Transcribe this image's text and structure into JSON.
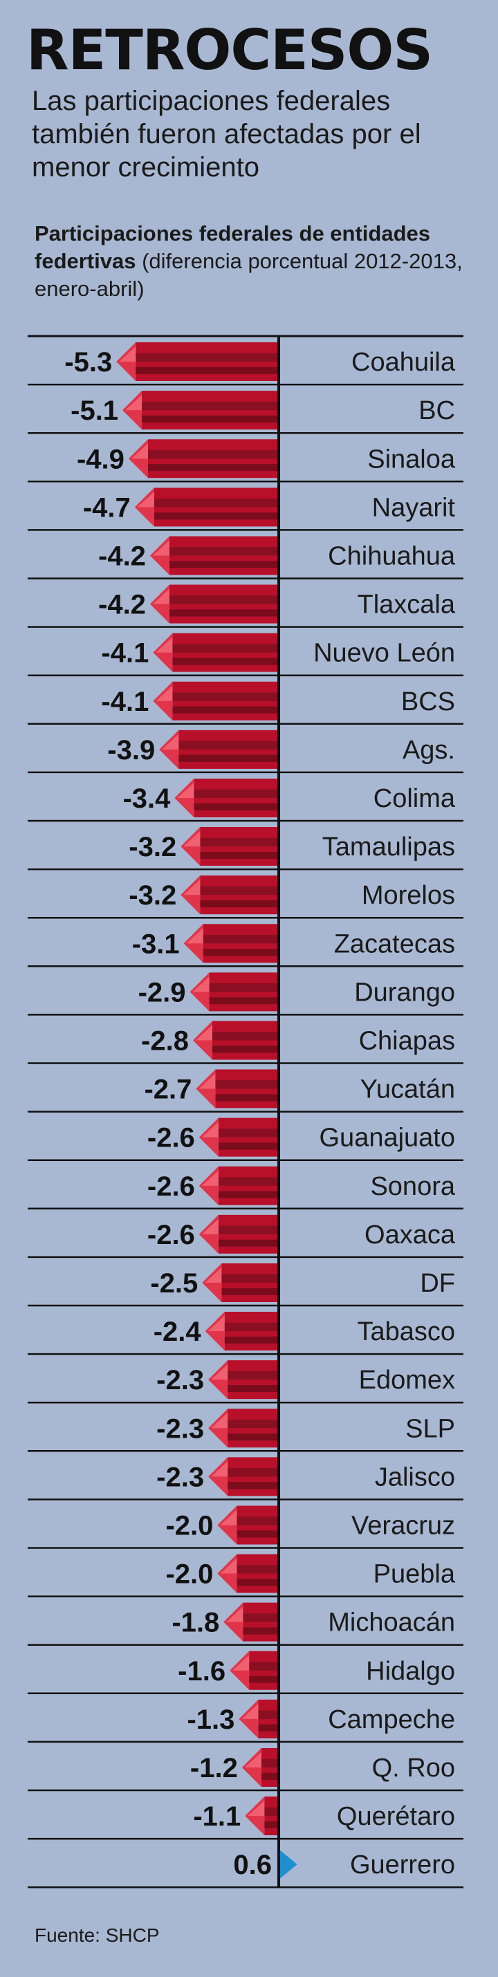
{
  "title": "RETROCESOS",
  "subtitle": "Las participaciones federales también fueron afectadas por el menor crecimiento",
  "chart_heading": {
    "bold": "Participaciones federales de entidades federtivas",
    "normal": "(diferencia porcentual 2012-2013, enero-abril)"
  },
  "source": "Fuente: SHCP",
  "colors": {
    "background": "#a9b8d2",
    "negative_bar": "#b8102a",
    "negative_tip": "#e0344a",
    "positive_tip": "#1f8fd0",
    "axis": "#111111"
  },
  "chart_data": {
    "type": "bar",
    "orientation": "horizontal",
    "title": "Participaciones federales de entidades federtivas (diferencia porcentual 2012-2013, enero-abril)",
    "xlabel": "",
    "ylabel": "",
    "xlim": [
      -5.3,
      0.6
    ],
    "grid": false,
    "categories": [
      "Coahuila",
      "BC",
      "Sinaloa",
      "Nayarit",
      "Chihuahua",
      "Tlaxcala",
      "Nuevo León",
      "BCS",
      "Ags.",
      "Colima",
      "Tamaulipas",
      "Morelos",
      "Zacatecas",
      "Durango",
      "Chiapas",
      "Yucatán",
      "Guanajuato",
      "Sonora",
      "Oaxaca",
      "DF",
      "Tabasco",
      "Edomex",
      "SLP",
      "Jalisco",
      "Veracruz",
      "Puebla",
      "Michoacán",
      "Hidalgo",
      "Campeche",
      "Q. Roo",
      "Querétaro",
      "Guerrero"
    ],
    "values": [
      -5.3,
      -5.1,
      -4.9,
      -4.7,
      -4.2,
      -4.2,
      -4.1,
      -4.1,
      -3.9,
      -3.4,
      -3.2,
      -3.2,
      -3.1,
      -2.9,
      -2.8,
      -2.7,
      -2.6,
      -2.6,
      -2.6,
      -2.5,
      -2.4,
      -2.3,
      -2.3,
      -2.3,
      -2.0,
      -2.0,
      -1.8,
      -1.6,
      -1.3,
      -1.2,
      -1.1,
      0.6
    ],
    "labels": [
      "-5.3",
      "-5.1",
      "-4.9",
      "-4.7",
      "-4.2",
      "-4.2",
      "-4.1",
      "-4.1",
      "-3.9",
      "-3.4",
      "-3.2",
      "-3.2",
      "-3.1",
      "-2.9",
      "-2.8",
      "-2.7",
      "-2.6",
      "-2.6",
      "-2.6",
      "-2.5",
      "-2.4",
      "-2.3",
      "-2.3",
      "-2.3",
      "-2.0",
      "-2.0",
      "-1.8",
      "-1.6",
      "-1.3",
      "-1.2",
      "-1.1",
      "0.6"
    ]
  }
}
